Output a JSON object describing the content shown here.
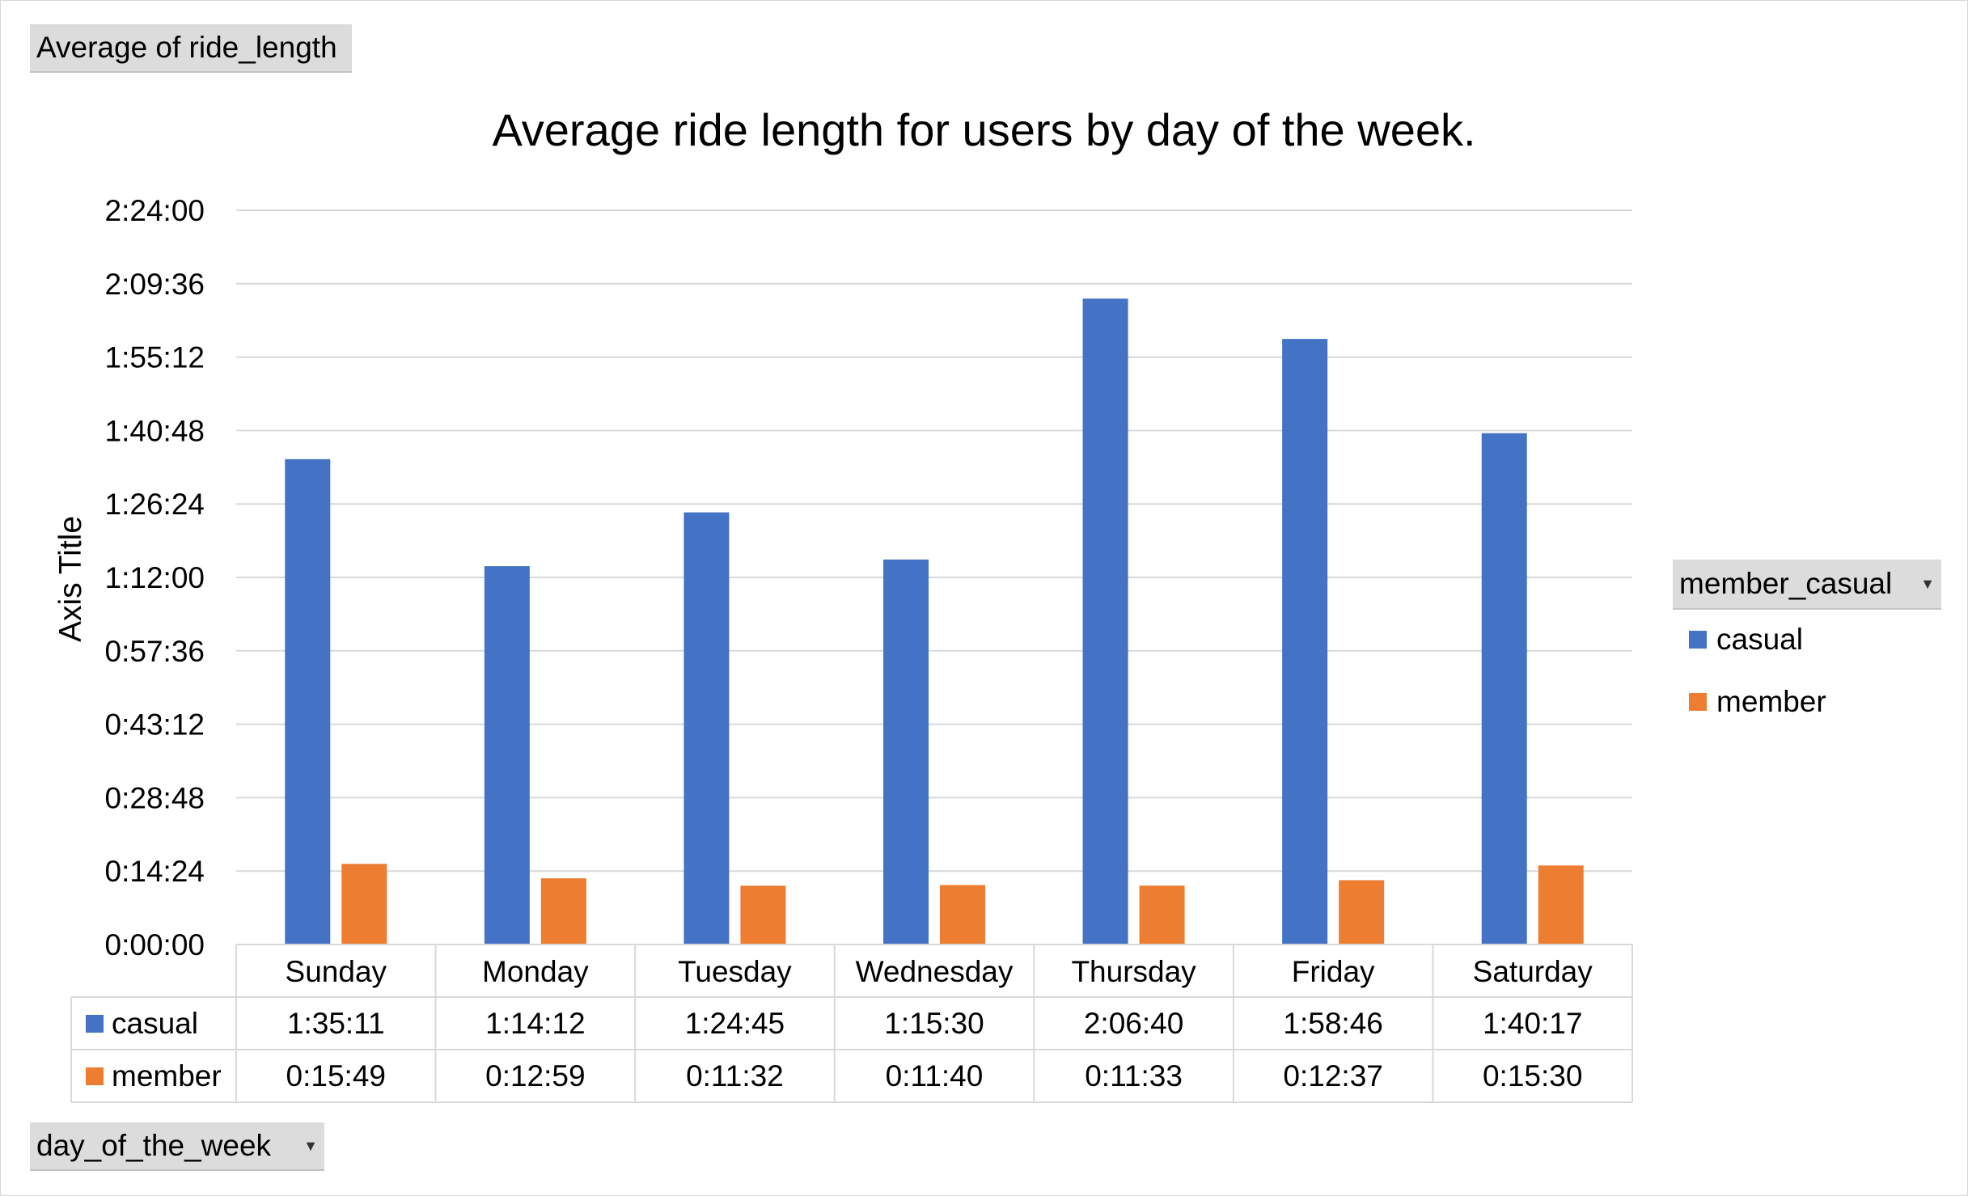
{
  "pivot": {
    "value_field": "Average  of ride_length",
    "row_field": "day_of_the_week",
    "series_field": "member_casual"
  },
  "legend": {
    "items": [
      {
        "label": "casual",
        "color": "#4472C4"
      },
      {
        "label": "member",
        "color": "#ED7D31"
      }
    ]
  },
  "icons": {
    "dropdown": "dropdown-arrow-icon"
  },
  "chart_data": {
    "type": "bar",
    "title": "Average ride length for users by day of the week.",
    "xlabel": "",
    "ylabel": "Axis Title",
    "y_unit": "seconds",
    "ylim": [
      0,
      8640
    ],
    "yticks": [
      0,
      864,
      1728,
      2592,
      3456,
      4320,
      5184,
      6048,
      6912,
      7776,
      8640
    ],
    "ytick_labels": [
      "0:00:00",
      "0:14:24",
      "0:28:48",
      "0:43:12",
      "0:57:36",
      "1:12:00",
      "1:26:24",
      "1:40:48",
      "1:55:12",
      "2:09:36",
      "2:24:00"
    ],
    "grid": true,
    "legend_position": "right",
    "categories": [
      "Sunday",
      "Monday",
      "Tuesday",
      "Wednesday",
      "Thursday",
      "Friday",
      "Saturday"
    ],
    "series": [
      {
        "name": "casual",
        "color": "#4472C4",
        "values": [
          5711,
          4452,
          5085,
          4530,
          7600,
          7126,
          6017
        ],
        "labels": [
          "1:35:11",
          "1:14:12",
          "1:24:45",
          "1:15:30",
          "2:06:40",
          "1:58:46",
          "1:40:17"
        ]
      },
      {
        "name": "member",
        "color": "#ED7D31",
        "values": [
          949,
          779,
          692,
          700,
          693,
          757,
          930
        ],
        "labels": [
          "0:15:49",
          "0:12:59",
          "0:11:32",
          "0:11:40",
          "0:11:33",
          "0:12:37",
          "0:15:30"
        ]
      }
    ]
  }
}
